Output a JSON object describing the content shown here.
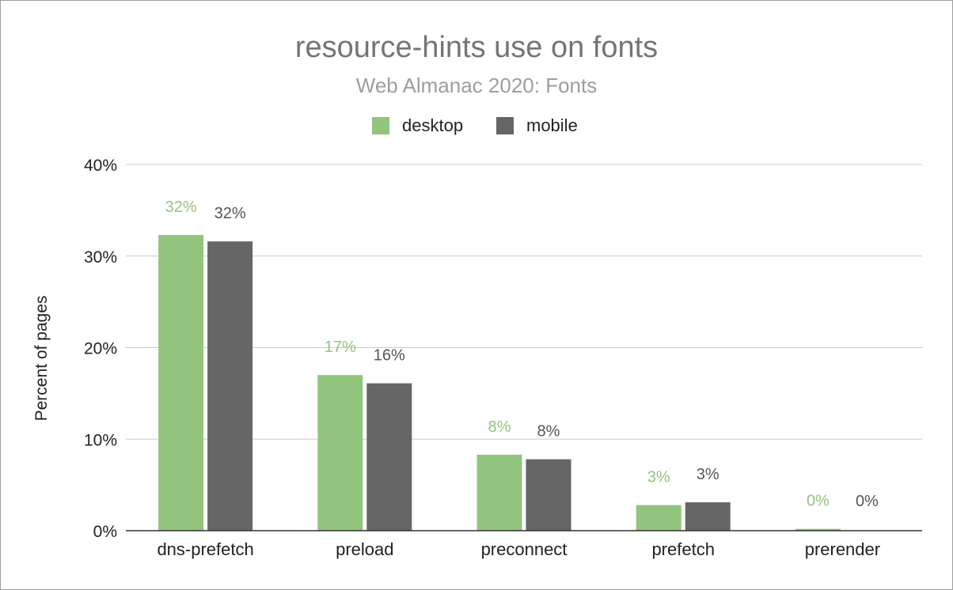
{
  "chart_data": {
    "type": "bar",
    "title": "resource-hints use on fonts",
    "subtitle": "Web Almanac 2020: Fonts",
    "xlabel": "",
    "ylabel": "Percent of pages",
    "ylim": [
      0,
      40
    ],
    "yticks": [
      0,
      10,
      20,
      30,
      40
    ],
    "ytick_labels": [
      "0%",
      "10%",
      "20%",
      "30%",
      "40%"
    ],
    "grid": true,
    "legend_position": "top-center",
    "categories": [
      "dns-prefetch",
      "preload",
      "preconnect",
      "prefetch",
      "prerender"
    ],
    "series": [
      {
        "name": "desktop",
        "color": "#93c47d",
        "label_color": "#93c47d",
        "values": [
          32.3,
          17.0,
          8.3,
          2.8,
          0.2
        ],
        "labels": [
          "32%",
          "17%",
          "8%",
          "3%",
          "0%"
        ]
      },
      {
        "name": "mobile",
        "color": "#666666",
        "label_color": "#555555",
        "values": [
          31.6,
          16.1,
          7.8,
          3.1,
          0.0
        ],
        "labels": [
          "32%",
          "16%",
          "8%",
          "3%",
          "0%"
        ]
      }
    ]
  }
}
